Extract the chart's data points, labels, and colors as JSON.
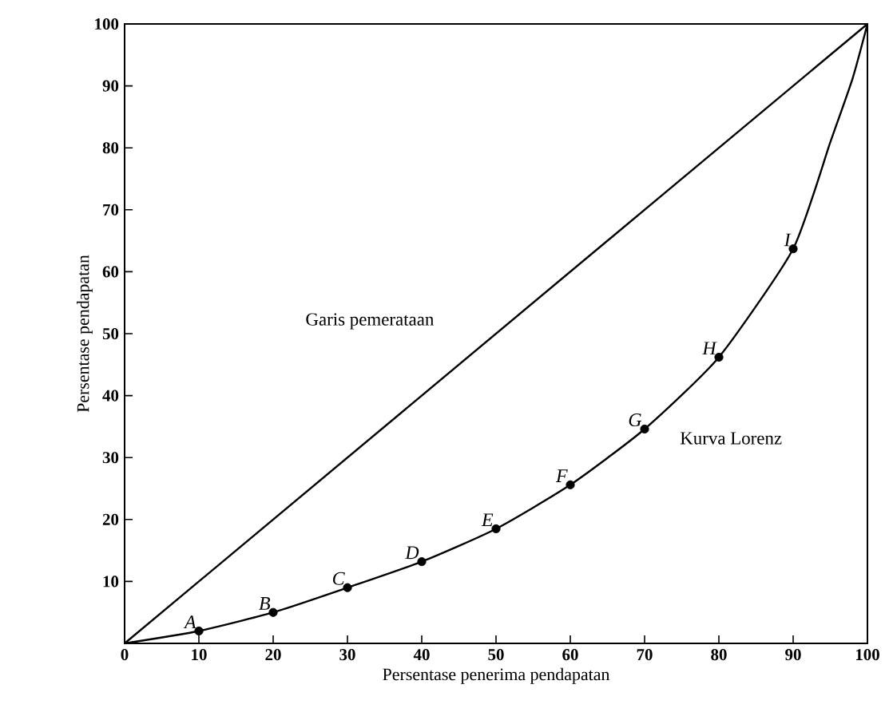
{
  "chart_data": {
    "type": "line",
    "xlabel": "Persentase penerima pendapatan",
    "ylabel": "Persentase pendapatan",
    "series": [
      {
        "name": "Garis pemerataan",
        "color": "#000000",
        "x": [
          0,
          100
        ],
        "values": [
          0,
          100
        ],
        "marker": "none"
      },
      {
        "name": "Kurva Lorenz",
        "color": "#000000",
        "x": [
          0,
          10,
          20,
          30,
          40,
          50,
          60,
          70,
          80,
          90,
          95,
          98,
          100
        ],
        "values": [
          0,
          2,
          5,
          9,
          13.2,
          18.5,
          25.6,
          34.6,
          46.2,
          63.7,
          80.9,
          91.2,
          100
        ],
        "marker": "none"
      },
      {
        "type": "scatter",
        "color": "#000000",
        "x": [
          10,
          20,
          30,
          40,
          50,
          60,
          70,
          80,
          90
        ],
        "values": [
          2,
          5,
          9,
          13.2,
          18.5,
          25.6,
          34.6,
          46.2,
          63.7
        ],
        "marker": "circle"
      }
    ],
    "annotations": [
      {
        "text": "A",
        "x": 10,
        "y": 2
      },
      {
        "text": "B",
        "x": 20,
        "y": 5
      },
      {
        "text": "C",
        "x": 30,
        "y": 9
      },
      {
        "text": "D",
        "x": 40,
        "y": 13.2
      },
      {
        "text": "E",
        "x": 50,
        "y": 18.5
      },
      {
        "text": "F",
        "x": 60,
        "y": 25.6
      },
      {
        "text": "G",
        "x": 70,
        "y": 34.6
      },
      {
        "text": "H",
        "x": 80,
        "y": 46.2
      },
      {
        "text": "I",
        "x": 90,
        "y": 63.7
      }
    ],
    "xlim": [
      0,
      100
    ],
    "ylim": [
      0,
      100
    ],
    "xticks": [
      0,
      10,
      20,
      30,
      40,
      50,
      60,
      70,
      80,
      90,
      100
    ],
    "yticks": [
      10,
      20,
      30,
      40,
      50,
      60,
      70,
      80,
      90,
      100
    ],
    "grid": false
  }
}
